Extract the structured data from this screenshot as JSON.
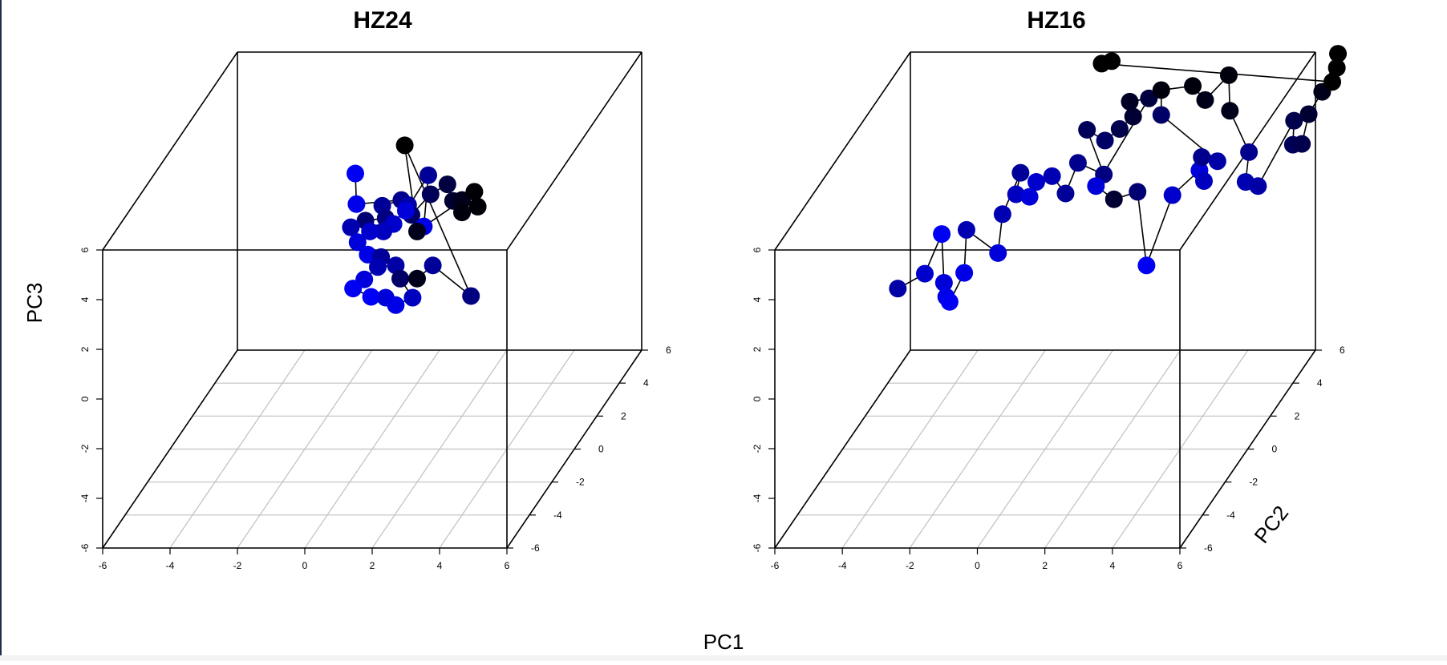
{
  "figure": {
    "xlabel": "PC1",
    "colors": {
      "background": "#ffffff",
      "box": "#000000",
      "grid": "#c0c0c0",
      "low": "#0000ff",
      "high": "#000000",
      "line": "#000000"
    }
  },
  "chart_data": [
    {
      "type": "scatter",
      "projection": "3d",
      "title": "HZ24",
      "xlabel": "PC1",
      "ylabel": "PC2",
      "zlabel": "PC3",
      "xlim": [
        -6,
        6
      ],
      "ylim": [
        -6,
        6
      ],
      "zlim": [
        -6,
        6
      ],
      "xticks": [
        "-6",
        "-4",
        "-2",
        "0",
        "2",
        "4",
        "6"
      ],
      "yticks": [
        "-6",
        "-4",
        "-2",
        "0",
        "2",
        "4",
        "6"
      ],
      "zticks": [
        "-6",
        "-4",
        "-2",
        "0",
        "2",
        "4",
        "6"
      ],
      "grid": true,
      "points_connected": true,
      "points": [
        {
          "x": -1.1,
          "y": 1.8,
          "z": 3.9,
          "shade": 0.95
        },
        {
          "x": -1.0,
          "y": 1.6,
          "z": 2.8,
          "shade": 0.92
        },
        {
          "x": 0.2,
          "y": 2.0,
          "z": 2.7,
          "shade": 0.55
        },
        {
          "x": -0.3,
          "y": 1.8,
          "z": 2.6,
          "shade": 0.6
        },
        {
          "x": 0.0,
          "y": 1.2,
          "z": 2.5,
          "shade": 0.5
        },
        {
          "x": -0.7,
          "y": 1.5,
          "z": 2.2,
          "shade": 0.45
        },
        {
          "x": -1.1,
          "y": 1.4,
          "z": 2.0,
          "shade": 0.7
        },
        {
          "x": 0.0,
          "y": 1.9,
          "z": 1.8,
          "shade": 0.8
        },
        {
          "x": 0.3,
          "y": 2.3,
          "z": 2.3,
          "shade": 0.65
        },
        {
          "x": 0.5,
          "y": 2.0,
          "z": 2.1,
          "shade": 0.4
        },
        {
          "x": 0.9,
          "y": 2.5,
          "z": 2.6,
          "shade": 0.35
        },
        {
          "x": 1.3,
          "y": 2.8,
          "z": 2.8,
          "shade": 0.25
        },
        {
          "x": 1.6,
          "y": 2.4,
          "z": 2.4,
          "shade": 0.2
        },
        {
          "x": 1.9,
          "y": 2.3,
          "z": 2.5,
          "shade": 0.1
        },
        {
          "x": 2.0,
          "y": 2.0,
          "z": 2.2,
          "shade": 0.05
        },
        {
          "x": 2.4,
          "y": 2.2,
          "z": 2.3,
          "shade": 0.03
        },
        {
          "x": 2.2,
          "y": 2.5,
          "z": 2.7,
          "shade": 0.02
        },
        {
          "x": 1.0,
          "y": 1.6,
          "z": 1.9,
          "shade": 0.9
        },
        {
          "x": 0.7,
          "y": 2.9,
          "z": 3.1,
          "shade": 0.6
        },
        {
          "x": 0.2,
          "y": 2.4,
          "z": 2.0,
          "shade": 0.85
        },
        {
          "x": -0.2,
          "y": 1.6,
          "z": 1.7,
          "shade": 0.75
        },
        {
          "x": -0.7,
          "y": 1.9,
          "z": 1.5,
          "shade": 0.8
        },
        {
          "x": -1.0,
          "y": 1.7,
          "z": 1.2,
          "shade": 0.85
        },
        {
          "x": -0.6,
          "y": 1.4,
          "z": 0.9,
          "shade": 0.9
        },
        {
          "x": -0.3,
          "y": 1.7,
          "z": 0.6,
          "shade": 0.6
        },
        {
          "x": 0.1,
          "y": 1.8,
          "z": 0.2,
          "shade": 0.65
        },
        {
          "x": -0.3,
          "y": 1.4,
          "z": 0.4,
          "shade": 0.7
        },
        {
          "x": -0.6,
          "y": 1.1,
          "z": 0.1,
          "shade": 0.85
        },
        {
          "x": -1.0,
          "y": 1.3,
          "z": -0.4,
          "shade": 0.95
        },
        {
          "x": -0.5,
          "y": 1.4,
          "z": -0.8,
          "shade": 0.98
        },
        {
          "x": 0.0,
          "y": 1.2,
          "z": -0.7,
          "shade": 0.85
        },
        {
          "x": 0.4,
          "y": 0.9,
          "z": -0.8,
          "shade": 0.9
        },
        {
          "x": 0.7,
          "y": 1.5,
          "z": -0.9,
          "shade": 0.75
        },
        {
          "x": 0.2,
          "y": 1.9,
          "z": -0.4,
          "shade": 0.4
        },
        {
          "x": 0.8,
          "y": 1.6,
          "z": -0.2,
          "shade": 0.1
        },
        {
          "x": 1.2,
          "y": 1.8,
          "z": 0.2,
          "shade": 0.6
        },
        {
          "x": 2.4,
          "y": 1.6,
          "z": -0.9,
          "shade": 0.5
        },
        {
          "x": 0.4,
          "y": 1.7,
          "z": 5.1,
          "shade": 0.0
        },
        {
          "x": 0.6,
          "y": 2.2,
          "z": 1.3,
          "shade": 0.1
        }
      ]
    },
    {
      "type": "scatter",
      "projection": "3d",
      "title": "HZ16",
      "xlabel": "PC1",
      "ylabel": "PC2",
      "zlabel": "PC3",
      "xlim": [
        -6,
        6
      ],
      "ylim": [
        -6,
        6
      ],
      "zlim": [
        -6,
        6
      ],
      "xticks": [
        "-6",
        "-4",
        "-2",
        "0",
        "2",
        "4",
        "6"
      ],
      "yticks": [
        "-6",
        "-4",
        "-2",
        "0",
        "2",
        "4",
        "6"
      ],
      "zticks": [
        "-6",
        "-4",
        "-2",
        "0",
        "2",
        "4",
        "6"
      ],
      "grid": true,
      "points_connected": true,
      "points": [
        {
          "x": -4.9,
          "y": 1.6,
          "z": -0.6,
          "shade": 0.65
        },
        {
          "x": -4.2,
          "y": 1.9,
          "z": -0.2,
          "shade": 0.8
        },
        {
          "x": -4.0,
          "y": 2.8,
          "z": 0.8,
          "shade": 0.95
        },
        {
          "x": -3.6,
          "y": 1.8,
          "z": -0.5,
          "shade": 0.85
        },
        {
          "x": -3.5,
          "y": 1.7,
          "z": -1.0,
          "shade": 0.9
        },
        {
          "x": -3.6,
          "y": 2.3,
          "z": -1.6,
          "shade": 0.95
        },
        {
          "x": -3.1,
          "y": 2.1,
          "z": -0.3,
          "shade": 0.9
        },
        {
          "x": -3.3,
          "y": 2.9,
          "z": 0.9,
          "shade": 0.7
        },
        {
          "x": -2.3,
          "y": 2.7,
          "z": 0.1,
          "shade": 0.85
        },
        {
          "x": -2.3,
          "y": 3.1,
          "z": 1.4,
          "shade": 0.7
        },
        {
          "x": -2.0,
          "y": 3.8,
          "z": 2.6,
          "shade": 0.6
        },
        {
          "x": -2.0,
          "y": 3.4,
          "z": 2.0,
          "shade": 0.75
        },
        {
          "x": -1.6,
          "y": 3.4,
          "z": 1.9,
          "shade": 0.85
        },
        {
          "x": -1.5,
          "y": 3.7,
          "z": 2.3,
          "shade": 0.8
        },
        {
          "x": -1.1,
          "y": 3.9,
          "z": 2.4,
          "shade": 0.7
        },
        {
          "x": -0.6,
          "y": 3.6,
          "z": 1.9,
          "shade": 0.6
        },
        {
          "x": -0.4,
          "y": 4.1,
          "z": 2.8,
          "shade": 0.55
        },
        {
          "x": 0.4,
          "y": 4.0,
          "z": 2.4,
          "shade": 0.5
        },
        {
          "x": -0.3,
          "y": 4.6,
          "z": 3.8,
          "shade": 0.35
        },
        {
          "x": 0.3,
          "y": 4.4,
          "z": 3.5,
          "shade": 0.4
        },
        {
          "x": 0.7,
          "y": 4.5,
          "z": 3.9,
          "shade": 0.3
        },
        {
          "x": 1.0,
          "y": 4.8,
          "z": 4.2,
          "shade": 0.2
        },
        {
          "x": 0.8,
          "y": 5.1,
          "z": 4.6,
          "shade": 0.15
        },
        {
          "x": 1.4,
          "y": 5.0,
          "z": 4.8,
          "shade": 0.25
        },
        {
          "x": 0.3,
          "y": 3.6,
          "z": 2.2,
          "shade": 0.85
        },
        {
          "x": 0.8,
          "y": 3.7,
          "z": 1.6,
          "shade": 0.2
        },
        {
          "x": 1.6,
          "y": 3.4,
          "z": 2.1,
          "shade": 0.45
        },
        {
          "x": 2.3,
          "y": 2.1,
          "z": 0.0,
          "shade": 0.95
        },
        {
          "x": 2.6,
          "y": 3.5,
          "z": 1.9,
          "shade": 0.8
        },
        {
          "x": 3.3,
          "y": 3.8,
          "z": 2.7,
          "shade": 0.85
        },
        {
          "x": 3.5,
          "y": 3.6,
          "z": 2.4,
          "shade": 0.75
        },
        {
          "x": 3.4,
          "y": 3.7,
          "z": 3.3,
          "shade": 0.55
        },
        {
          "x": 3.8,
          "y": 3.9,
          "z": 3.0,
          "shade": 0.65
        },
        {
          "x": 1.8,
          "y": 4.9,
          "z": 4.2,
          "shade": 0.4
        },
        {
          "x": 1.7,
          "y": 5.2,
          "z": 5.0,
          "shade": 0.05
        },
        {
          "x": 2.6,
          "y": 5.3,
          "z": 5.1,
          "shade": 0.05
        },
        {
          "x": 3.1,
          "y": 4.9,
          "z": 4.8,
          "shade": 0.1
        },
        {
          "x": 3.7,
          "y": 5.2,
          "z": 5.6,
          "shade": 0.05
        },
        {
          "x": 3.8,
          "y": 5.0,
          "z": 4.3,
          "shade": 0.1
        },
        {
          "x": 4.7,
          "y": 4.0,
          "z": 3.3,
          "shade": 0.55
        },
        {
          "x": 4.6,
          "y": 4.0,
          "z": 2.1,
          "shade": 0.7
        },
        {
          "x": 4.9,
          "y": 4.2,
          "z": 1.8,
          "shade": 0.65
        },
        {
          "x": 5.7,
          "y": 5.0,
          "z": 3.9,
          "shade": 0.3
        },
        {
          "x": 5.8,
          "y": 4.6,
          "z": 3.2,
          "shade": 0.35
        },
        {
          "x": 5.9,
          "y": 5.1,
          "z": 2.9,
          "shade": 0.3
        },
        {
          "x": 6.0,
          "y": 5.4,
          "z": 3.9,
          "shade": 0.2
        },
        {
          "x": 6.3,
          "y": 5.7,
          "z": 4.6,
          "shade": 0.1
        },
        {
          "x": 6.6,
          "y": 6.2,
          "z": 5.8,
          "shade": 0.0
        },
        {
          "x": 6.6,
          "y": 6.1,
          "z": 5.3,
          "shade": 0.0
        },
        {
          "x": 6.5,
          "y": 6.0,
          "z": 4.8,
          "shade": 0.0
        },
        {
          "x": -0.1,
          "y": 5.3,
          "z": 6.0,
          "shade": 0.0
        },
        {
          "x": 0.3,
          "y": 5.0,
          "z": 6.3,
          "shade": 0.0
        }
      ]
    }
  ]
}
